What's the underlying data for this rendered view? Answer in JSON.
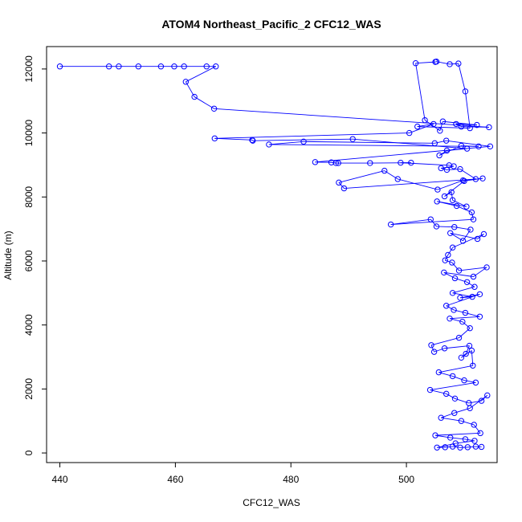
{
  "chart_data": {
    "type": "line",
    "title": "ATOM4 Northeast_Pacific_2 CFC12_WAS",
    "xlabel": "CFC12_WAS",
    "ylabel": "Altitude (m)",
    "xlim": [
      437.7,
      515.7
    ],
    "ylim": [
      -300,
      12700
    ],
    "xticks": [
      440,
      460,
      480,
      500
    ],
    "yticks": [
      0,
      2000,
      4000,
      6000,
      8000,
      10000,
      12000
    ],
    "xtick_labels": [
      "440",
      "460",
      "480",
      "500"
    ],
    "ytick_labels": [
      "0",
      "2000",
      "4000",
      "6000",
      "8000",
      "10000",
      "12000"
    ],
    "grid": false,
    "legend": "none",
    "series": [
      {
        "color": "#0000ff",
        "marker": "open-circle",
        "points": [
          [
            440.0,
            12080
          ],
          [
            448.5,
            12080
          ],
          [
            450.2,
            12080
          ],
          [
            453.6,
            12080
          ],
          [
            457.5,
            12080
          ],
          [
            459.8,
            12080
          ],
          [
            461.5,
            12080
          ],
          [
            465.4,
            12080
          ],
          [
            467.0,
            12080
          ],
          [
            461.8,
            11600
          ],
          [
            463.3,
            11130
          ],
          [
            466.7,
            10760
          ],
          [
            514.3,
            10180
          ],
          [
            509.5,
            10200
          ],
          [
            508.6,
            10280
          ],
          [
            512.2,
            10250
          ],
          [
            506.3,
            10360
          ],
          [
            505.8,
            10070
          ],
          [
            503.2,
            10400
          ],
          [
            501.6,
            12180
          ],
          [
            505.0,
            12220
          ],
          [
            505.2,
            12230
          ],
          [
            507.5,
            12150
          ],
          [
            509.0,
            12170
          ],
          [
            510.2,
            11300
          ],
          [
            511.0,
            10150
          ],
          [
            501.9,
            10200
          ],
          [
            504.7,
            10280
          ],
          [
            500.5,
            10000
          ],
          [
            466.8,
            9830
          ],
          [
            473.3,
            9780
          ],
          [
            473.4,
            9760
          ],
          [
            490.7,
            9810
          ],
          [
            510.5,
            9510
          ],
          [
            507.0,
            9450
          ],
          [
            505.7,
            9300
          ],
          [
            509.5,
            9600
          ],
          [
            512.5,
            9580
          ],
          [
            476.2,
            9640
          ],
          [
            482.2,
            9730
          ],
          [
            504.9,
            9680
          ],
          [
            506.9,
            9760
          ],
          [
            514.5,
            9580
          ],
          [
            484.2,
            9090
          ],
          [
            487.0,
            9080
          ],
          [
            487.8,
            9060
          ],
          [
            488.2,
            9060
          ],
          [
            493.7,
            9060
          ],
          [
            500.8,
            9070
          ],
          [
            499.0,
            9070
          ],
          [
            507.4,
            8990
          ],
          [
            508.2,
            8960
          ],
          [
            506.0,
            8900
          ],
          [
            507.0,
            8850
          ],
          [
            509.3,
            8870
          ],
          [
            512.0,
            8560
          ],
          [
            489.2,
            8270
          ],
          [
            488.3,
            8450
          ],
          [
            496.2,
            8820
          ],
          [
            498.5,
            8560
          ],
          [
            505.4,
            8230
          ],
          [
            509.8,
            8520
          ],
          [
            513.2,
            8580
          ],
          [
            510.0,
            8500
          ],
          [
            506.6,
            8020
          ],
          [
            507.8,
            8150
          ],
          [
            508.0,
            7900
          ],
          [
            510.4,
            7700
          ],
          [
            505.3,
            7860
          ],
          [
            508.7,
            7720
          ],
          [
            511.3,
            7520
          ],
          [
            511.6,
            7300
          ],
          [
            497.3,
            7140
          ],
          [
            504.2,
            7300
          ],
          [
            505.2,
            7080
          ],
          [
            508.3,
            7060
          ],
          [
            511.1,
            6980
          ],
          [
            509.8,
            6630
          ],
          [
            507.6,
            6870
          ],
          [
            512.3,
            6690
          ],
          [
            513.4,
            6840
          ],
          [
            508.0,
            6420
          ],
          [
            507.2,
            6190
          ],
          [
            506.7,
            6020
          ],
          [
            507.9,
            5950
          ],
          [
            509.1,
            5700
          ],
          [
            513.9,
            5800
          ],
          [
            511.6,
            5510
          ],
          [
            506.5,
            5640
          ],
          [
            508.4,
            5460
          ],
          [
            510.5,
            5340
          ],
          [
            511.8,
            5190
          ],
          [
            508.0,
            5000
          ],
          [
            511.4,
            4880
          ],
          [
            509.3,
            4850
          ],
          [
            512.7,
            4960
          ],
          [
            506.9,
            4600
          ],
          [
            508.2,
            4470
          ],
          [
            510.2,
            4380
          ],
          [
            512.7,
            4260
          ],
          [
            507.5,
            4200
          ],
          [
            509.7,
            4100
          ],
          [
            511.0,
            3900
          ],
          [
            509.1,
            3600
          ],
          [
            504.3,
            3370
          ],
          [
            504.8,
            3160
          ],
          [
            506.6,
            3270
          ],
          [
            510.9,
            3350
          ],
          [
            510.3,
            3100
          ],
          [
            509.5,
            2980
          ],
          [
            511.3,
            3200
          ],
          [
            511.5,
            2730
          ],
          [
            505.6,
            2520
          ],
          [
            508.0,
            2400
          ],
          [
            510.0,
            2270
          ],
          [
            512.0,
            2200
          ],
          [
            504.1,
            1970
          ],
          [
            506.9,
            1850
          ],
          [
            508.4,
            1700
          ],
          [
            510.8,
            1560
          ],
          [
            513.0,
            1630
          ],
          [
            514.0,
            1800
          ],
          [
            511.0,
            1400
          ],
          [
            508.3,
            1250
          ],
          [
            506.0,
            1100
          ],
          [
            509.5,
            1000
          ],
          [
            511.7,
            880
          ],
          [
            512.8,
            620
          ],
          [
            505.0,
            550
          ],
          [
            507.6,
            480
          ],
          [
            510.2,
            430
          ],
          [
            511.8,
            380
          ],
          [
            508.5,
            300
          ],
          [
            505.3,
            170
          ],
          [
            506.7,
            180
          ],
          [
            508.0,
            200
          ],
          [
            509.3,
            170
          ],
          [
            510.6,
            180
          ],
          [
            512.0,
            200
          ],
          [
            513.0,
            190
          ]
        ]
      }
    ]
  }
}
